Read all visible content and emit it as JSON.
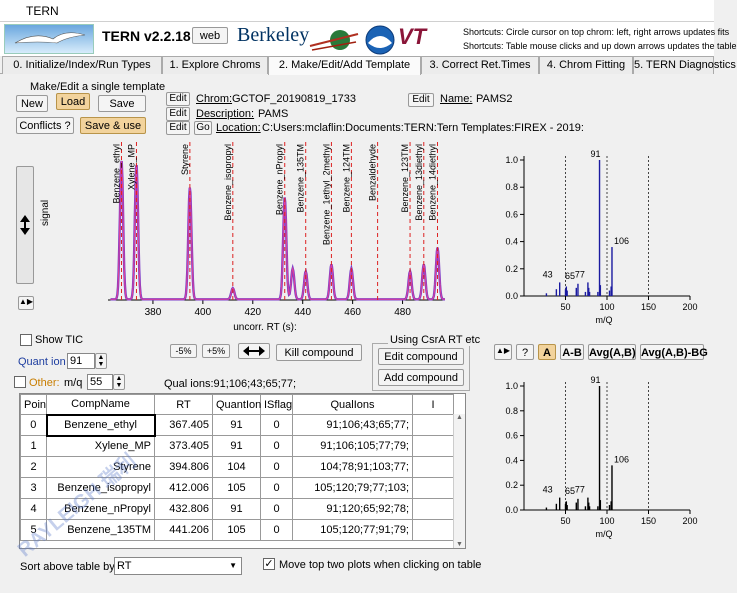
{
  "app": {
    "title": "TERN",
    "version": "TERN v2.2.18",
    "web_label": "web",
    "berkeley_logo": "Berkeley",
    "vt_logo": "VT",
    "noaa_logo": "NOAA",
    "shortcut1": "Shortcuts: Circle cursor on top chrom: left, right arrows updates fits",
    "shortcut2": "Shortcuts: Table mouse clicks and up down arrows updates the table"
  },
  "tabs": [
    {
      "label": "0. Initialize/Index/Run Types"
    },
    {
      "label": "1. Explore Chroms"
    },
    {
      "label": "2. Make/Edit/Add Template"
    },
    {
      "label": "3. Correct Ret.Times"
    },
    {
      "label": "4. Chrom Fitting"
    },
    {
      "label": "5. TERN Diagnostics"
    }
  ],
  "template": {
    "section_label": "Make/Edit a single template",
    "new_label": "New",
    "load_label": "Load",
    "save_label": "Save",
    "conflicts_label": "Conflicts ?",
    "save_use_label": "Save & use",
    "edit_label": "Edit",
    "go_label": "Go",
    "chrom_label": "Chrom:",
    "chrom_value": "GCTOF_20190819_1733",
    "name_label": "Name:",
    "name_value": "PAMS2",
    "desc_label": "Description:",
    "desc_value": "PAMS",
    "loc_label": "Location:",
    "loc_value": "C:Users:mclaflin:Documents:TERN:Tern Templates:FIREX - 2019:"
  },
  "chrom_plot": {
    "ylabel": "signal",
    "xlabel": "uncorr. RT (s):",
    "xticks": [
      "380",
      "400",
      "420",
      "440",
      "460",
      "480"
    ],
    "peaks": [
      {
        "name": "Benzene_ethyl"
      },
      {
        "name": "Xylene_MP"
      },
      {
        "name": "Styrene"
      },
      {
        "name": "Benzene_isopropyl"
      },
      {
        "name": "Benzene_nPropyl"
      },
      {
        "name": "Benzene_135TM"
      },
      {
        "name": "Benzene_1ethyl_2methyl"
      },
      {
        "name": "Benzene_124TM"
      },
      {
        "name": "Benzaldehyde"
      },
      {
        "name": "Benzene_123TM"
      },
      {
        "name": "Benzene_13diethyl"
      },
      {
        "name": "Benzene_14diethyl"
      }
    ]
  },
  "controls": {
    "show_tic": "Show TIC",
    "quant_ion_label": "Quant ion",
    "quant_ion_value": "91",
    "other_label": "Other:",
    "mz_label": "m/q",
    "mz_value": "55",
    "minus5": "-5%",
    "plus5": "+5%",
    "fit_icon": "double-arrow-icon",
    "kill_label": "Kill compound",
    "csra_label": "Using CsrA RT etc",
    "edit_compound": "Edit compound",
    "add_compound": "Add compound",
    "qual_ions_label": "Qual ions:91;106;43;65;77;"
  },
  "table": {
    "columns": [
      "Poin",
      "CompName",
      "RT",
      "QuantIon",
      "ISflag",
      "QualIons",
      "I"
    ],
    "rows": [
      [
        "0",
        "Benzene_ethyl",
        "367.405",
        "91",
        "0",
        "91;106;43;65;77;"
      ],
      [
        "1",
        "Xylene_MP",
        "373.405",
        "91",
        "0",
        "91;106;105;77;79;"
      ],
      [
        "2",
        "Styrene",
        "394.806",
        "104",
        "0",
        "104;78;91;103;77;"
      ],
      [
        "3",
        "Benzene_isopropyl",
        "412.006",
        "105",
        "0",
        "105;120;79;77;103;"
      ],
      [
        "4",
        "Benzene_nPropyl",
        "432.806",
        "91",
        "0",
        "91;120;65;92;78;"
      ],
      [
        "5",
        "Benzene_135TM",
        "441.206",
        "105",
        "0",
        "105;120;77;91;79;"
      ]
    ]
  },
  "sort": {
    "label": "Sort above table by:",
    "value": "RT",
    "move_label": "Move top two plots when clicking on table"
  },
  "ms_buttons": {
    "a_label": "A",
    "ab_label": "A-B",
    "avg_ab_label": "Avg(A,B)",
    "avg_abbg_label": "Avg(A,B)-BG",
    "q_label": "?"
  },
  "spectra": [
    {
      "xlabel": "m/Q",
      "yticks": [
        "0.0",
        "0.2",
        "0.4",
        "0.6",
        "0.8",
        "1.0"
      ],
      "xticks": [
        "50",
        "100",
        "150",
        "200"
      ],
      "peak_labels": [
        {
          "mz": 91,
          "text": "91"
        },
        {
          "mz": 106,
          "text": "106"
        },
        {
          "mz": 43,
          "text": "43"
        },
        {
          "mz": 65,
          "text": "65"
        },
        {
          "mz": 77,
          "text": "77"
        }
      ]
    },
    {
      "xlabel": "m/Q",
      "yticks": [
        "0.0",
        "0.2",
        "0.4",
        "0.6",
        "0.8",
        "1.0"
      ],
      "xticks": [
        "50",
        "100",
        "150",
        "200"
      ],
      "peak_labels": [
        {
          "mz": 91,
          "text": "91"
        },
        {
          "mz": 106,
          "text": "106"
        },
        {
          "mz": 43,
          "text": "43"
        },
        {
          "mz": 65,
          "text": "65"
        },
        {
          "mz": 77,
          "text": "77"
        }
      ]
    }
  ],
  "watermark": "RAYLEIGH 瑞利"
}
